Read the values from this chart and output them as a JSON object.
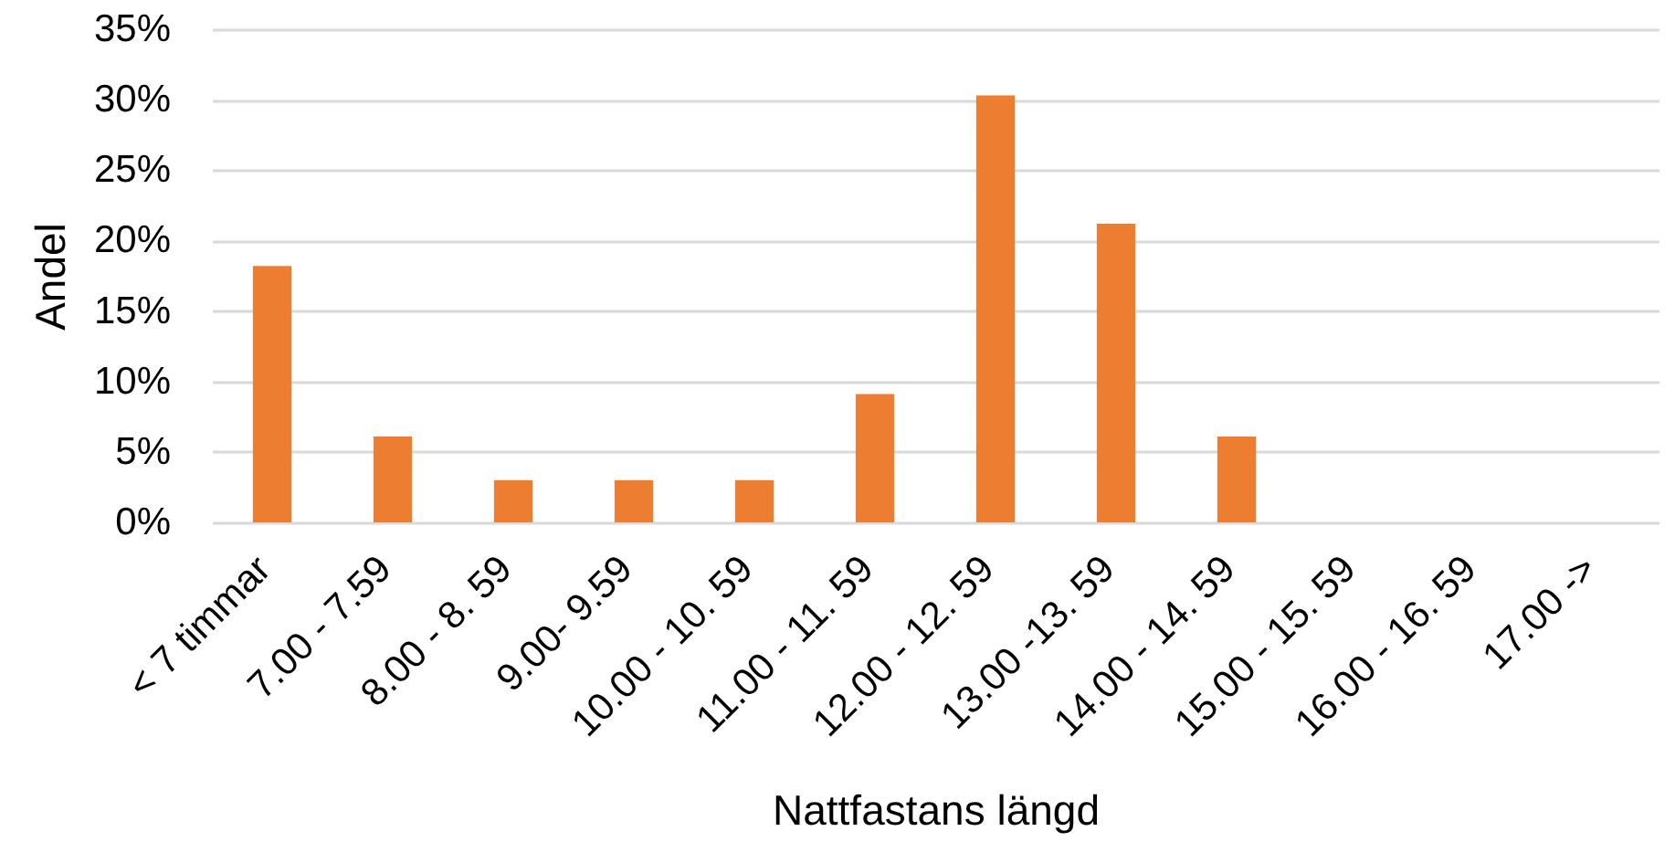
{
  "chart_data": {
    "type": "bar",
    "xlabel": "Nattfastans längd",
    "ylabel": "Andel",
    "categories": [
      "< 7 timmar",
      "7.00 - 7.59",
      "8.00 - 8. 59",
      "9.00- 9.59",
      "10.00 - 10. 59",
      "11.00 - 11. 59",
      "12.00 - 12. 59",
      "13.00 -13. 59",
      "14.00 - 14. 59",
      "15.00 - 15. 59",
      "16.00 - 16. 59",
      "17.00 ->"
    ],
    "values": [
      18.2,
      6.1,
      3.0,
      3.0,
      3.0,
      9.1,
      30.3,
      21.2,
      6.1,
      0,
      0,
      0
    ],
    "color": "#ed7d31",
    "ylim": [
      0,
      35
    ],
    "yticks": [
      {
        "value": 0,
        "label": "0%"
      },
      {
        "value": 5,
        "label": "5%"
      },
      {
        "value": 10,
        "label": "10%"
      },
      {
        "value": 15,
        "label": "15%"
      },
      {
        "value": 20,
        "label": "20%"
      },
      {
        "value": 25,
        "label": "25%"
      },
      {
        "value": 30,
        "label": "30%"
      },
      {
        "value": 35,
        "label": "35%"
      }
    ],
    "grid": "y"
  }
}
